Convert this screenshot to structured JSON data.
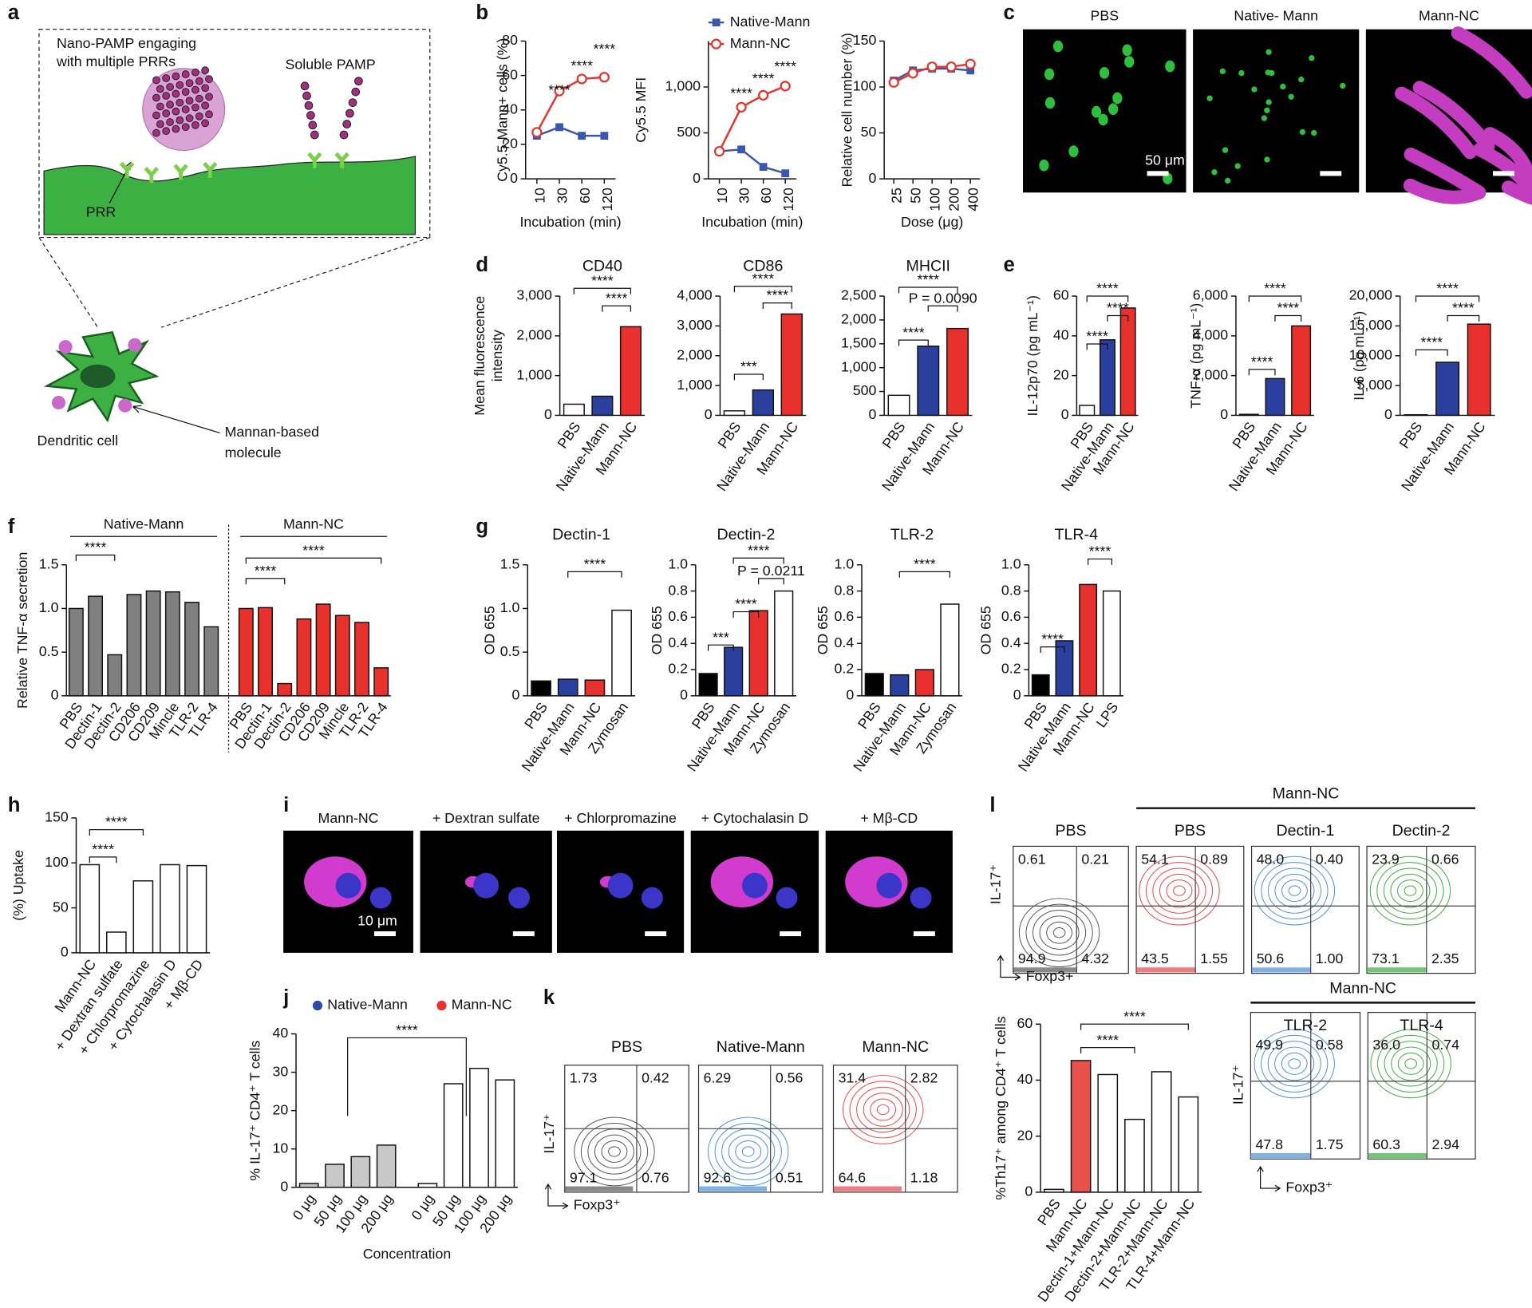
{
  "panel_labels": [
    "a",
    "b",
    "c",
    "d",
    "e",
    "f",
    "g",
    "h",
    "i",
    "j",
    "k",
    "l"
  ],
  "diagram": {
    "nano_pamp": [
      "Nano-PAMP engaging",
      "with multiple PRRs"
    ],
    "soluble_pamp": "Soluble PAMP",
    "prr": "PRR",
    "cell": "Dendritic cell",
    "molecule": [
      "Mannan-based",
      "molecule"
    ]
  },
  "images_c": {
    "labels": [
      "PBS",
      "Native- Mann",
      "Mann-NC"
    ],
    "scale_bar": "50 μm"
  },
  "images_i": {
    "labels": [
      "Mann-NC",
      "+ Dextran sulfate",
      "+ Chlorpromazine",
      "+ Cytochalasin D",
      "+ Mβ-CD"
    ],
    "scale_bar": "10 μm"
  },
  "flow_k": {
    "y_label": "IL-17⁺",
    "x_label": "Foxp3⁺",
    "plots": [
      {
        "title": "PBS",
        "quadrants": [
          "1.73",
          "0.42",
          "97.1",
          "0.76"
        ]
      },
      {
        "title": "Native-Mann",
        "quadrants": [
          "6.29",
          "0.56",
          "92.6",
          "0.51"
        ]
      },
      {
        "title": "Mann-NC",
        "quadrants": [
          "31.4",
          "2.82",
          "64.6",
          "1.18"
        ]
      }
    ]
  },
  "flow_l_top": {
    "header": "Mann-NC",
    "y_label": "IL-17⁺",
    "x_label": "Foxp3+",
    "plots": [
      {
        "title": "PBS",
        "quadrants": [
          "0.61",
          "0.21",
          "94.9",
          "4.32"
        ]
      },
      {
        "title": "PBS",
        "quadrants": [
          "54.1",
          "0.89",
          "43.5",
          "1.55"
        ]
      },
      {
        "title": "Dectin-1",
        "quadrants": [
          "48.0",
          "0.40",
          "50.6",
          "1.00"
        ]
      },
      {
        "title": "Dectin-2",
        "quadrants": [
          "23.9",
          "0.66",
          "73.1",
          "2.35"
        ]
      }
    ]
  },
  "flow_l_bottom": {
    "header": "Mann-NC",
    "y_label": "IL-17⁺",
    "x_label": "Foxp3⁺",
    "plots": [
      {
        "title": "TLR-2",
        "quadrants": [
          "49.9",
          "0.58",
          "47.8",
          "1.75"
        ]
      },
      {
        "title": "TLR-4",
        "quadrants": [
          "36.0",
          "0.74",
          "60.3",
          "2.94"
        ]
      }
    ]
  },
  "chart_data": [
    {
      "type": "line",
      "y_label": "Cy5.5-Mann+ cells (%)",
      "x_label": "Incubation (min)",
      "categories": [
        "10",
        "30",
        "60",
        "120"
      ],
      "ylim": [
        0,
        80
      ],
      "yticks": [
        0,
        20,
        40,
        60,
        80
      ],
      "series": [
        {
          "name": "Native-Mann",
          "color": "#3a56b0",
          "marker": "square",
          "values": [
            25,
            30,
            25,
            25
          ]
        },
        {
          "name": "Mann-NC",
          "color": "#e0352b",
          "marker": "circle",
          "values": [
            27,
            51,
            58,
            59
          ]
        }
      ],
      "annotations": [
        "****",
        "****",
        "****"
      ]
    },
    {
      "type": "line",
      "y_label": "Cy5.5 MFI",
      "x_label": "Incubation (min)",
      "legend": true,
      "categories": [
        "10",
        "30",
        "60",
        "120"
      ],
      "ylim": [
        0,
        1500
      ],
      "yticks": [
        0,
        500,
        {
          "value": 1000,
          "label": "1,000"
        }
      ],
      "series": [
        {
          "name": "Native-Mann",
          "color": "#3a56b0",
          "marker": "square",
          "values": [
            300,
            320,
            130,
            60
          ]
        },
        {
          "name": "Mann-NC",
          "color": "#e0352b",
          "marker": "circle",
          "values": [
            300,
            780,
            910,
            1010
          ]
        }
      ],
      "annotations": [
        "****",
        "****",
        "****"
      ]
    },
    {
      "type": "line",
      "y_label": "Relative cell number (%)",
      "x_label": "Dose (μg)",
      "categories": [
        "25",
        "50",
        "100",
        "200",
        "400"
      ],
      "ylim": [
        0,
        150
      ],
      "yticks": [
        0,
        50,
        100,
        150
      ],
      "series": [
        {
          "name": "Native-Mann",
          "color": "#3a56b0",
          "marker": "square",
          "values": [
            107,
            118,
            120,
            120,
            118
          ]
        },
        {
          "name": "Mann-NC",
          "color": "#e0352b",
          "marker": "circle",
          "values": [
            105,
            115,
            122,
            122,
            125
          ]
        }
      ]
    },
    {
      "type": "bar",
      "title": "CD40",
      "y_label": [
        "Mean fluorescence",
        "intensity"
      ],
      "categories": [
        "PBS",
        "Native-Mann",
        "Mann-NC"
      ],
      "values": [
        280,
        480,
        2230
      ],
      "colors": [
        "#ffffff",
        "#2b3f9e",
        "#e8312d"
      ],
      "ylim": [
        0,
        3000
      ],
      "yticks": [
        0,
        {
          "value": 1000,
          "label": "1,000"
        },
        {
          "value": 2000,
          "label": "2,000"
        },
        {
          "value": 3000,
          "label": "3,000"
        }
      ],
      "annotations": [
        "****",
        "****"
      ]
    },
    {
      "type": "bar",
      "title": "CD86",
      "categories": [
        "PBS",
        "Native-Mann",
        "Mann-NC"
      ],
      "values": [
        150,
        850,
        3400
      ],
      "colors": [
        "#ffffff",
        "#2b3f9e",
        "#e8312d"
      ],
      "ylim": [
        0,
        4000
      ],
      "yticks": [
        0,
        {
          "value": 1000,
          "label": "1,000"
        },
        {
          "value": 2000,
          "label": "2,000"
        },
        {
          "value": 3000,
          "label": "3,000"
        },
        {
          "value": 4000,
          "label": "4,000"
        }
      ],
      "annotations": [
        "****",
        "****",
        "***"
      ]
    },
    {
      "type": "bar",
      "title": "MHCII",
      "categories": [
        "PBS",
        "Native-Mann",
        "Mann-NC"
      ],
      "values": [
        420,
        1450,
        1820
      ],
      "colors": [
        "#ffffff",
        "#2b3f9e",
        "#e8312d"
      ],
      "ylim": [
        0,
        2500
      ],
      "yticks": [
        0,
        500,
        {
          "value": 1000,
          "label": "1,000"
        },
        {
          "value": 1500,
          "label": "1,500"
        },
        {
          "value": 2000,
          "label": "2,000"
        },
        {
          "value": 2500,
          "label": "2,500"
        }
      ],
      "annotations": [
        "****",
        "P = 0.0090",
        "****"
      ]
    },
    {
      "type": "bar",
      "y_label": "IL-12p70 (pg mL⁻¹)",
      "categories": [
        "PBS",
        "Native-Mann",
        "Mann-NC"
      ],
      "values": [
        5,
        38,
        54
      ],
      "colors": [
        "#ffffff",
        "#2b3f9e",
        "#e8312d"
      ],
      "ylim": [
        0,
        60
      ],
      "yticks": [
        0,
        20,
        40,
        60
      ],
      "annotations": [
        "****",
        "****",
        "****"
      ]
    },
    {
      "type": "bar",
      "y_label": "TNF-α (pg mL⁻¹)",
      "categories": [
        "PBS",
        "Native-Mann",
        "Mann-NC"
      ],
      "values": [
        50,
        1850,
        4500
      ],
      "colors": [
        "#ffffff",
        "#2b3f9e",
        "#e8312d"
      ],
      "ylim": [
        0,
        6000
      ],
      "yticks": [
        0,
        {
          "value": 2000,
          "label": "2,000"
        },
        {
          "value": 4000,
          "label": "4,000"
        },
        {
          "value": 6000,
          "label": "6,000"
        }
      ],
      "annotations": [
        "****",
        "****",
        "****"
      ]
    },
    {
      "type": "bar",
      "y_label": "IL-6 (pg mL⁻¹)",
      "categories": [
        "PBS",
        "Native-Mann",
        "Mann-NC"
      ],
      "values": [
        100,
        8900,
        15300
      ],
      "colors": [
        "#ffffff",
        "#2b3f9e",
        "#e8312d"
      ],
      "ylim": [
        0,
        20000
      ],
      "yticks": [
        0,
        {
          "value": 5000,
          "label": "5,000"
        },
        {
          "value": 10000,
          "label": "10,000"
        },
        {
          "value": 15000,
          "label": "15,000"
        },
        {
          "value": 20000,
          "label": "20,000"
        }
      ],
      "annotations": [
        "****",
        "****",
        "****"
      ]
    },
    {
      "type": "bar",
      "y_label": "Relative TNF-α secretion",
      "groups": [
        {
          "name": "Native-Mann",
          "color": "#808080",
          "categories": [
            "PBS",
            "Dectin-1",
            "Dectin-2",
            "CD206",
            "CD209",
            "Mincle",
            "TLR-2",
            "TLR-4"
          ],
          "values": [
            1.0,
            1.14,
            0.47,
            1.16,
            1.2,
            1.19,
            1.07,
            0.79
          ]
        },
        {
          "name": "Mann-NC",
          "color": "#e8312d",
          "categories": [
            "PBS",
            "Dectin-1",
            "Dectin-2",
            "CD206",
            "CD209",
            "Mincle",
            "TLR-2",
            "TLR-4"
          ],
          "values": [
            1.0,
            1.01,
            0.14,
            0.88,
            1.05,
            0.92,
            0.84,
            0.32
          ]
        }
      ],
      "ylim": [
        0,
        1.5
      ],
      "yticks": [
        0,
        0.5,
        {
          "value": 1,
          "label": "1.0"
        },
        1.5
      ],
      "annotations": [
        "****",
        "****",
        "****"
      ]
    },
    {
      "type": "bar",
      "title": "Dectin-1",
      "y_label": "OD 655",
      "categories": [
        "PBS",
        "Native-Mann",
        "Mann-NC",
        "Zymosan"
      ],
      "values": [
        0.17,
        0.19,
        0.18,
        0.98
      ],
      "colors": [
        "#000000",
        "#2b3f9e",
        "#e8312d",
        "#ffffff"
      ],
      "ylim": [
        0,
        1.5
      ],
      "yticks": [
        0,
        0.5,
        {
          "value": 1,
          "label": "1.0"
        },
        1.5
      ],
      "annotations": [
        "****"
      ]
    },
    {
      "type": "bar",
      "title": "Dectin-2",
      "y_label": "OD 655",
      "categories": [
        "PBS",
        "Native-Mann",
        "Mann-NC",
        "Zymosan"
      ],
      "values": [
        0.17,
        0.37,
        0.65,
        0.8
      ],
      "colors": [
        "#000000",
        "#2b3f9e",
        "#e8312d",
        "#ffffff"
      ],
      "ylim": [
        0,
        1
      ],
      "yticks": [
        0,
        0.2,
        0.4,
        0.6,
        0.8,
        {
          "value": 1,
          "label": "1.0"
        }
      ],
      "annotations": [
        "****",
        "P = 0.0211",
        "****",
        "***"
      ]
    },
    {
      "type": "bar",
      "title": "TLR-2",
      "y_label": "OD 655",
      "categories": [
        "PBS",
        "Native-Mann",
        "Mann-NC",
        "Zymosan"
      ],
      "values": [
        0.17,
        0.16,
        0.2,
        0.7
      ],
      "colors": [
        "#000000",
        "#2b3f9e",
        "#e8312d",
        "#ffffff"
      ],
      "ylim": [
        0,
        1
      ],
      "yticks": [
        0,
        0.2,
        0.4,
        0.6,
        0.8,
        {
          "value": 1,
          "label": "1.0"
        }
      ],
      "annotations": [
        "****"
      ]
    },
    {
      "type": "bar",
      "title": "TLR-4",
      "y_label": "OD 655",
      "categories": [
        "PBS",
        "Native-Mann",
        "Mann-NC",
        "LPS"
      ],
      "values": [
        0.16,
        0.42,
        0.85,
        0.8
      ],
      "colors": [
        "#000000",
        "#2b3f9e",
        "#e8312d",
        "#ffffff"
      ],
      "ylim": [
        0,
        1
      ],
      "yticks": [
        0,
        0.2,
        0.4,
        0.6,
        0.8,
        {
          "value": 1,
          "label": "1.0"
        }
      ],
      "annotations": [
        "****",
        "****"
      ]
    },
    {
      "type": "bar",
      "y_label": "(%) Uptake",
      "categories": [
        "Mann-NC",
        "+ Dextran sulfate",
        "+ Chlorpromazine",
        "+ Cytochalasin D",
        "+ Mβ-CD"
      ],
      "values": [
        98,
        23,
        80,
        98,
        97
      ],
      "colors": [
        "#ffffff",
        "#ffffff",
        "#ffffff",
        "#ffffff",
        "#ffffff"
      ],
      "ylim": [
        0,
        150
      ],
      "yticks": [
        0,
        50,
        100,
        150
      ],
      "annotations": [
        "****",
        "****"
      ]
    },
    {
      "type": "bar",
      "y_label": "% IL-17⁺ CD4⁺ T cells",
      "x_label": "Concentration",
      "legend": true,
      "groups": [
        {
          "name": "Native-Mann",
          "color": "#c8c8c8",
          "point_color": "#2c4aa8",
          "categories": [
            "0 μg",
            "50 μg",
            "100 μg",
            "200 μg"
          ],
          "values": [
            1,
            6,
            8,
            11
          ]
        },
        {
          "name": "Mann-NC",
          "color": "#ffffff",
          "point_color": "#e8312d",
          "categories": [
            "0 μg",
            "50 μg",
            "100 μg",
            "200 μg"
          ],
          "values": [
            1,
            27,
            31,
            28
          ]
        }
      ],
      "ylim": [
        0,
        40
      ],
      "yticks": [
        0,
        10,
        20,
        30,
        40
      ],
      "annotations": [
        "****"
      ]
    },
    {
      "type": "bar",
      "y_label": "%Th17⁺ among CD4⁺ T cells",
      "categories": [
        "PBS",
        "Mann-NC",
        "Dectin-1+Mann-NC",
        "Dectin-2+Mann-NC",
        "TLR-2+Mann-NC",
        "TLR-4+Mann-NC"
      ],
      "values": [
        1,
        47,
        42,
        26,
        43,
        34
      ],
      "colors": [
        "#ffffff",
        "#e8504a",
        "#ffffff",
        "#ffffff",
        "#ffffff",
        "#ffffff"
      ],
      "ylim": [
        0,
        60
      ],
      "yticks": [
        0,
        20,
        40,
        60
      ],
      "annotations": [
        "****",
        "****"
      ]
    }
  ]
}
